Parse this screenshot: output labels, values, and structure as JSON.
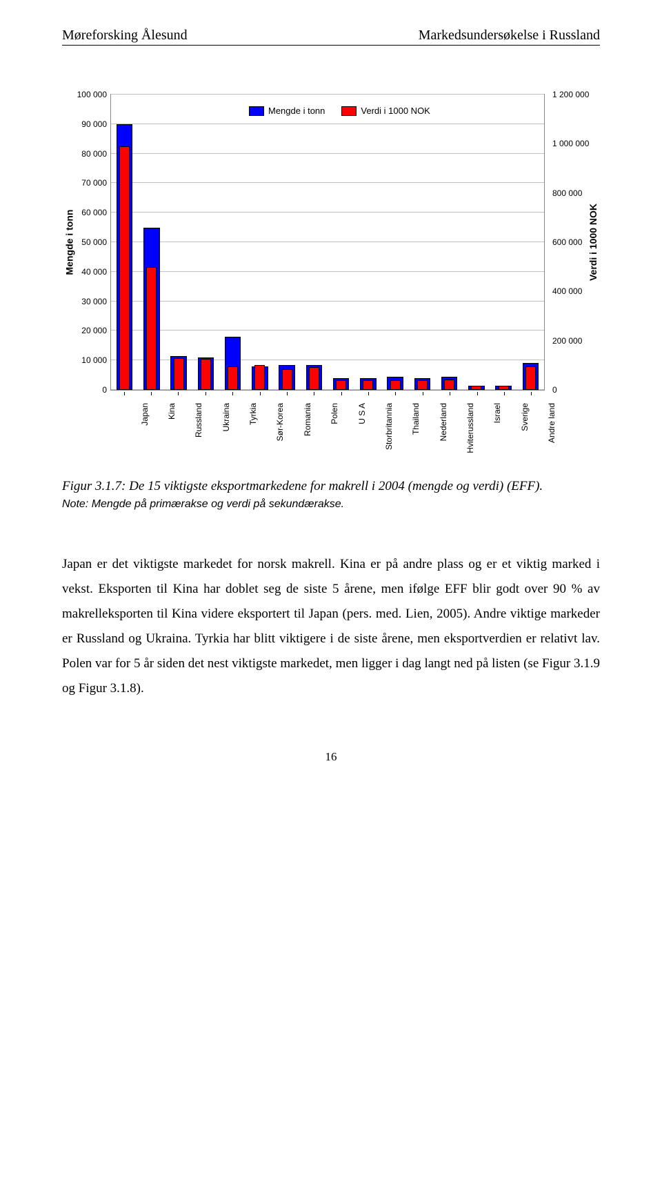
{
  "header": {
    "left": "Møreforsking Ålesund",
    "right": "Markedsundersøkelse i Russland"
  },
  "chart": {
    "type": "dual-axis-bar",
    "legend": [
      {
        "label": "Mengde i tonn",
        "color": "#0000ff"
      },
      {
        "label": "Verdi i 1000 NOK",
        "color": "#ff0000"
      }
    ],
    "y_left": {
      "title": "Mengde i tonn",
      "min": 0,
      "max": 100000,
      "step": 10000,
      "tick_labels": [
        "0",
        "10 000",
        "20 000",
        "30 000",
        "40 000",
        "50 000",
        "60 000",
        "70 000",
        "80 000",
        "90 000",
        "100 000"
      ]
    },
    "y_right": {
      "title": "Verdi i 1000 NOK",
      "min": 0,
      "max": 1200000,
      "step": 200000,
      "tick_labels": [
        "0",
        "200 000",
        "400 000",
        "600 000",
        "800 000",
        "1 000 000",
        "1 200 000"
      ]
    },
    "categories": [
      "Japan",
      "Kina",
      "Russland",
      "Ukraina",
      "Tyrkia",
      "Sør-Korea",
      "Romania",
      "Polen",
      "U S A",
      "Storbritannia",
      "Thailand",
      "Nederland",
      "Hviterussland",
      "Israel",
      "Sverige",
      "Andre land"
    ],
    "mengde_values": [
      90000,
      55000,
      11500,
      11000,
      18000,
      8000,
      8500,
      8500,
      4000,
      4000,
      4500,
      4000,
      4500,
      1500,
      1500,
      9000
    ],
    "verdi_values": [
      990000,
      500000,
      130000,
      125000,
      95000,
      100000,
      85000,
      92000,
      40000,
      38000,
      40000,
      38000,
      42000,
      18000,
      16000,
      95000
    ],
    "colors": {
      "mengde": "#0000ff",
      "verdi": "#ff0000",
      "grid": "#c0c0c0",
      "border": "#888888",
      "bar_border": "#000000"
    }
  },
  "caption": {
    "figure_label": "Figur 3.1.7: De 15 viktigste eksportmarkedene for makrell i 2004 (mengde og verdi) (EFF).",
    "note": "Note: Mengde på primærakse og verdi på sekundærakse."
  },
  "body": "Japan er det viktigste markedet for norsk makrell. Kina er på andre plass og er et viktig marked i vekst. Eksporten til Kina har doblet seg de siste 5 årene, men ifølge EFF blir godt over 90 % av makrelleksporten til Kina videre eksportert til Japan (pers. med. Lien, 2005). Andre viktige markeder er Russland og Ukraina. Tyrkia har blitt viktigere i de siste årene, men eksportverdien er relativt lav. Polen var for 5 år siden det nest viktigste markedet, men ligger i dag langt ned på listen (se Figur 3.1.9 og Figur 3.1.8).",
  "page_number": "16"
}
